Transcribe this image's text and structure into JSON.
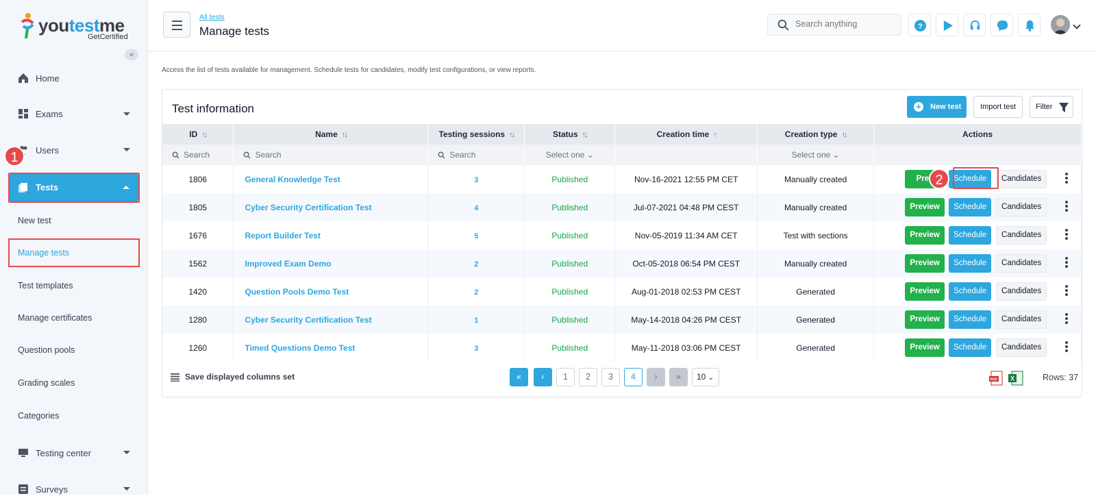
{
  "brand": {
    "name_a": "you",
    "name_b": "test",
    "name_c": "me",
    "tagline": "GetCertified"
  },
  "sidebar": {
    "collapse": "«",
    "items": [
      {
        "label": "Home"
      },
      {
        "label": "Exams"
      },
      {
        "label": "Users"
      },
      {
        "label": "Tests"
      },
      {
        "label": "Testing center"
      },
      {
        "label": "Surveys"
      }
    ],
    "sub_items": [
      {
        "label": "New test"
      },
      {
        "label": "Manage tests"
      },
      {
        "label": "Test templates"
      },
      {
        "label": "Manage certificates"
      },
      {
        "label": "Question pools"
      },
      {
        "label": "Grading scales"
      },
      {
        "label": "Categories"
      }
    ]
  },
  "annotations": {
    "step1": "1",
    "step2": "2"
  },
  "header": {
    "breadcrumb": "All tests",
    "title": "Manage tests",
    "search_placeholder": "Search anything"
  },
  "description": "Access the list of tests available for management. Schedule tests for candidates, modify test configurations, or view reports.",
  "card": {
    "title": "Test information",
    "new_test": "New test",
    "import_test": "Import test",
    "filter": "Filter"
  },
  "table": {
    "headers": [
      "ID",
      "Name",
      "Testing sessions",
      "Status",
      "Creation time",
      "Creation type",
      "Actions"
    ],
    "filters": {
      "search": "Search",
      "select": "Select one"
    },
    "rows": [
      {
        "id": "1806",
        "name": "General Knowledge Test",
        "sessions": "3",
        "status": "Published",
        "created": "Nov-16-2021 12:55 PM CET",
        "type": "Manually created"
      },
      {
        "id": "1805",
        "name": "Cyber Security Certification Test",
        "sessions": "4",
        "status": "Published",
        "created": "Jul-07-2021 04:48 PM CEST",
        "type": "Manually created"
      },
      {
        "id": "1676",
        "name": "Report Builder Test",
        "sessions": "5",
        "status": "Published",
        "created": "Nov-05-2019 11:34 AM CET",
        "type": "Test with sections"
      },
      {
        "id": "1562",
        "name": "Improved Exam Demo",
        "sessions": "2",
        "status": "Published",
        "created": "Oct-05-2018 06:54 PM CEST",
        "type": "Manually created"
      },
      {
        "id": "1420",
        "name": "Question Pools Demo Test",
        "sessions": "2",
        "status": "Published",
        "created": "Aug-01-2018 02:53 PM CEST",
        "type": "Generated"
      },
      {
        "id": "1280",
        "name": "Cyber Security Certification Test",
        "sessions": "1",
        "status": "Published",
        "created": "May-14-2018 04:26 PM CEST",
        "type": "Generated"
      },
      {
        "id": "1260",
        "name": "Timed Questions Demo Test",
        "sessions": "3",
        "status": "Published",
        "created": "May-11-2018 03:06 PM CEST",
        "type": "Generated"
      }
    ],
    "actions": {
      "preview": "Preview",
      "preview_partial": "Prev",
      "schedule": "Schedule",
      "candidates": "Candidates"
    }
  },
  "footer": {
    "save_columns": "Save displayed columns set",
    "pages": [
      "1",
      "2",
      "3",
      "4"
    ],
    "current_page": "4",
    "rows_per_page": "10",
    "rows_total": "Rows: 37"
  },
  "colors": {
    "accent": "#2ea6de",
    "success": "#22b14c",
    "annotation": "#e34b4b"
  }
}
